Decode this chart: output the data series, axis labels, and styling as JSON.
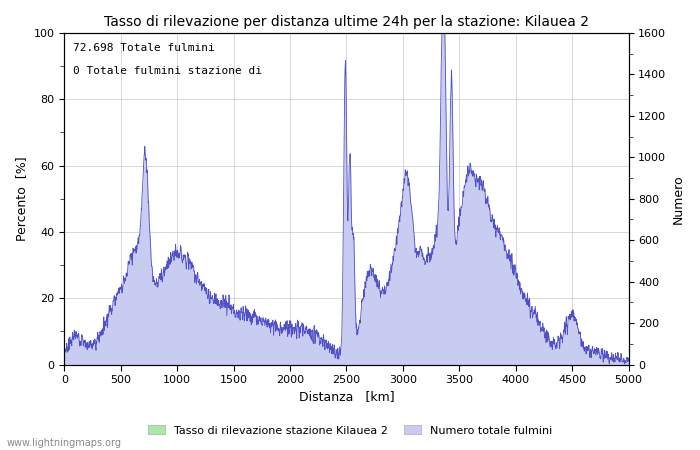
{
  "title": "Tasso di rilevazione per distanza ultime 24h per la stazione: Kilauea 2",
  "xlabel": "Distanza   [km]",
  "ylabel_left": "Percento  [%]",
  "ylabel_right": "Numero",
  "annotation_line1": "72.698 Totale fulmini",
  "annotation_line2": "0 Totale fulmini stazione di",
  "legend_label1": "Tasso di rilevazione stazione Kilauea 2",
  "legend_label2": "Numero totale fulmini",
  "watermark": "www.lightningmaps.org",
  "xlim": [
    0,
    5000
  ],
  "ylim_left": [
    0,
    100
  ],
  "ylim_right": [
    0,
    1600
  ],
  "fill_color_blue": "#c8ccf0",
  "line_color_blue": "#5050c8",
  "fill_color_green": "#a8e8a8",
  "background_color": "#ffffff",
  "grid_color": "#c8c8c8"
}
